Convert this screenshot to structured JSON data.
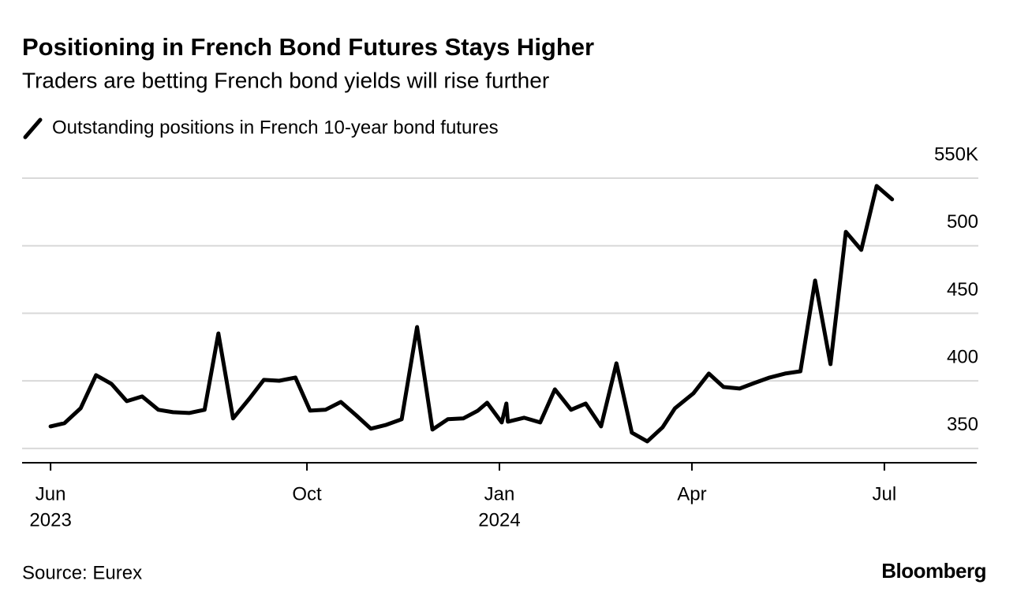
{
  "chart_data": {
    "type": "line",
    "title": "Positioning in French Bond Futures Stays Higher",
    "subtitle": "Traders are betting French bond yields will rise further",
    "source": "Source: Eurex",
    "brand": "Bloomberg",
    "x": [
      2023.417,
      2023.435,
      2023.456,
      2023.476,
      2023.496,
      2023.516,
      2023.536,
      2023.557,
      2023.576,
      2023.597,
      2023.617,
      2023.635,
      2023.654,
      2023.675,
      2023.694,
      2023.714,
      2023.735,
      2023.754,
      2023.774,
      2023.794,
      2023.814,
      2023.833,
      2023.853,
      2023.873,
      2023.893,
      2023.913,
      2023.933,
      2023.953,
      2023.972,
      2023.984,
      2024.003,
      2024.009,
      2024.011,
      2024.032,
      2024.053,
      2024.072,
      2024.093,
      2024.112,
      2024.132,
      2024.152,
      2024.172,
      2024.192,
      2024.212,
      2024.228,
      2024.252,
      2024.272,
      2024.291,
      2024.312,
      2024.331,
      2024.351,
      2024.371,
      2024.391,
      2024.41,
      2024.43,
      2024.45,
      2024.47,
      2024.49,
      2024.51
    ],
    "series": [
      {
        "name": "Outstanding positions in French 10-year bond futures",
        "color": "#000000",
        "values": [
          366.3,
          368.7,
          379.7,
          404.2,
          397.8,
          385,
          388.5,
          378.6,
          376.8,
          376.2,
          378.6,
          435.1,
          372.2,
          386.7,
          400.7,
          400.1,
          402.5,
          378,
          378.6,
          384.4,
          374.5,
          364.6,
          367.5,
          371.6,
          439.8,
          364,
          371.6,
          372.2,
          378,
          383.8,
          369.2,
          383.2,
          369.8,
          372.7,
          369.2,
          393.7,
          378.6,
          383.2,
          366.3,
          413,
          361.7,
          355.2,
          365.7,
          379.7,
          390.8,
          405.4,
          395.5,
          394.3,
          398.4,
          402.5,
          405.4,
          407.1,
          474.2,
          412.4,
          510.3,
          496.9,
          544.2,
          534.3
        ]
      }
    ],
    "xlim": [
      2023.38,
      2024.62
    ],
    "xticks": [
      {
        "value": 2023.417,
        "label": "Jun"
      },
      {
        "value": 2023.75,
        "label": "Oct"
      },
      {
        "value": 2024.0,
        "label": "Jan"
      },
      {
        "value": 2024.25,
        "label": "Apr"
      },
      {
        "value": 2024.5,
        "label": "Jul"
      }
    ],
    "xtick_years": [
      {
        "value": 2023.417,
        "label": "2023"
      },
      {
        "value": 2024.0,
        "label": "2024"
      }
    ],
    "ylim": [
      340,
      550
    ],
    "yticks": [
      350,
      400,
      450,
      500,
      {
        "value": 550,
        "label": "550K"
      }
    ],
    "grid": true
  }
}
